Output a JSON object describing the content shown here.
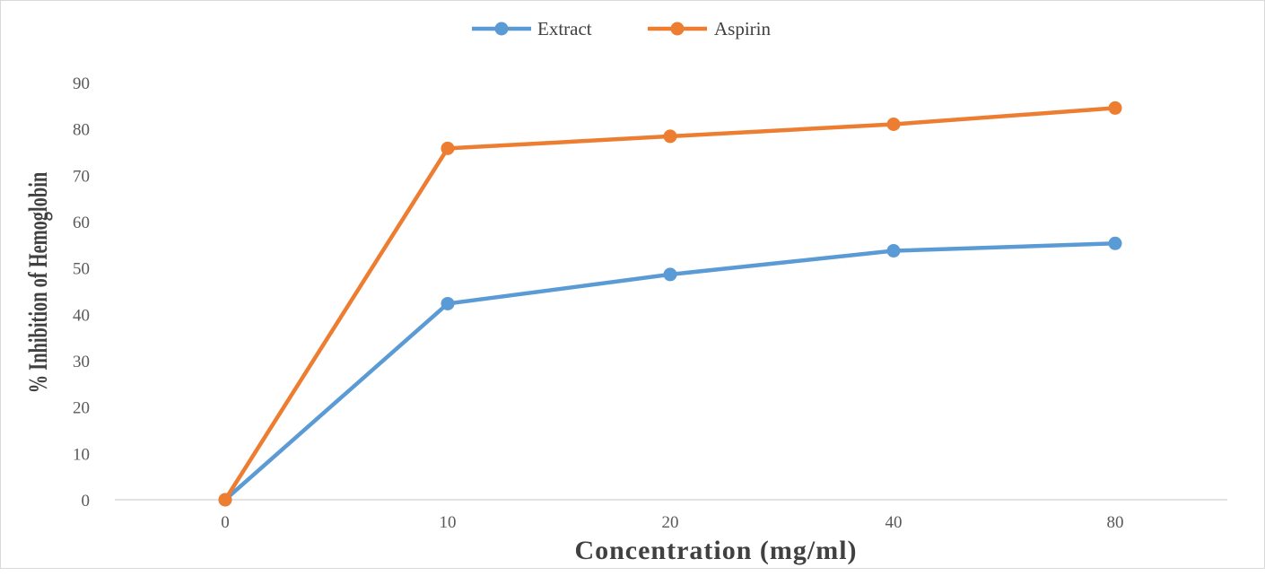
{
  "chart_data": {
    "type": "line",
    "categories": [
      "0",
      "10",
      "20",
      "40",
      "80"
    ],
    "series": [
      {
        "name": "Extract",
        "color": "#5b9bd5",
        "values": [
          0,
          42.3,
          48.6,
          53.7,
          55.3
        ]
      },
      {
        "name": "Aspirin",
        "color": "#ed7d31",
        "values": [
          0,
          75.8,
          78.4,
          81.0,
          84.5
        ]
      }
    ],
    "xlabel": "Concentration (mg/ml)",
    "ylabel": "% Inhibition of Hemoglobin",
    "ylim": [
      0,
      90
    ],
    "yticks": [
      "0",
      "10",
      "20",
      "30",
      "40",
      "50",
      "60",
      "70",
      "80",
      "90"
    ],
    "grid": false,
    "legend_position": "top-center"
  }
}
